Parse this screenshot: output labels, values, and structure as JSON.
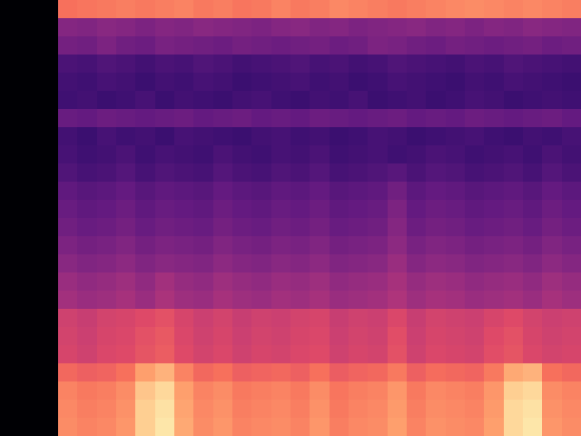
{
  "chart_data": {
    "type": "heatmap",
    "color": "magma",
    "tick_labels": false,
    "grid": false,
    "zlim": [
      0,
      100
    ],
    "z": [
      [
        0,
        0,
        0,
        70,
        71,
        72,
        73,
        72,
        73,
        74,
        72,
        73,
        71,
        72,
        74,
        72,
        73,
        75,
        74,
        73,
        72,
        73,
        74,
        75,
        76,
        75,
        74,
        75,
        74,
        73
      ],
      [
        0,
        0,
        0,
        38,
        37,
        39,
        38,
        36,
        38,
        37,
        39,
        38,
        37,
        36,
        38,
        39,
        37,
        38,
        36,
        37,
        38,
        39,
        37,
        38,
        36,
        38,
        37,
        39,
        38,
        37
      ],
      [
        0,
        0,
        0,
        34,
        33,
        36,
        33,
        32,
        35,
        34,
        33,
        32,
        34,
        33,
        32,
        33,
        34,
        32,
        33,
        36,
        35,
        33,
        32,
        34,
        33,
        32,
        33,
        34,
        32,
        33
      ],
      [
        0,
        0,
        0,
        24,
        23,
        25,
        24,
        22,
        24,
        23,
        25,
        24,
        22,
        23,
        24,
        25,
        23,
        24,
        22,
        23,
        25,
        24,
        23,
        22,
        24,
        23,
        25,
        24,
        23,
        22
      ],
      [
        0,
        0,
        0,
        22,
        21,
        23,
        22,
        20,
        22,
        21,
        23,
        22,
        20,
        21,
        22,
        23,
        21,
        22,
        20,
        21,
        23,
        22,
        21,
        20,
        22,
        21,
        23,
        22,
        21,
        20
      ],
      [
        0,
        0,
        0,
        21,
        22,
        20,
        21,
        23,
        20,
        22,
        21,
        20,
        22,
        23,
        21,
        20,
        22,
        21,
        23,
        20,
        21,
        22,
        20,
        21,
        23,
        22,
        20,
        21,
        22,
        21
      ],
      [
        0,
        0,
        0,
        31,
        30,
        32,
        31,
        30,
        31,
        32,
        30,
        31,
        32,
        30,
        31,
        30,
        32,
        31,
        30,
        31,
        32,
        30,
        31,
        30,
        32,
        31,
        30,
        31,
        32,
        30
      ],
      [
        0,
        0,
        0,
        22,
        20,
        23,
        21,
        22,
        20,
        23,
        22,
        21,
        20,
        22,
        23,
        21,
        22,
        20,
        21,
        23,
        22,
        20,
        21,
        22,
        23,
        21,
        20,
        22,
        21,
        23
      ],
      [
        0,
        0,
        0,
        23,
        21,
        22,
        24,
        21,
        23,
        22,
        21,
        24,
        22,
        21,
        23,
        22,
        24,
        21,
        22,
        23,
        21,
        22,
        24,
        23,
        21,
        22,
        23,
        21,
        24,
        22
      ],
      [
        0,
        0,
        0,
        25,
        23,
        24,
        26,
        23,
        25,
        24,
        23,
        26,
        24,
        23,
        25,
        24,
        26,
        23,
        24,
        25,
        27,
        24,
        26,
        25,
        23,
        24,
        25,
        23,
        26,
        24
      ],
      [
        0,
        0,
        0,
        29,
        27,
        28,
        30,
        27,
        29,
        28,
        27,
        30,
        28,
        27,
        29,
        28,
        30,
        27,
        28,
        29,
        33,
        28,
        30,
        29,
        27,
        28,
        29,
        27,
        30,
        28
      ],
      [
        0,
        0,
        0,
        31,
        29,
        30,
        32,
        29,
        31,
        30,
        29,
        32,
        30,
        29,
        31,
        30,
        32,
        29,
        30,
        31,
        36,
        30,
        32,
        31,
        29,
        30,
        31,
        29,
        32,
        30
      ],
      [
        0,
        0,
        0,
        33,
        31,
        32,
        34,
        31,
        33,
        32,
        31,
        34,
        32,
        31,
        33,
        32,
        34,
        31,
        32,
        33,
        38,
        32,
        34,
        33,
        31,
        32,
        33,
        31,
        34,
        32
      ],
      [
        0,
        0,
        0,
        36,
        34,
        35,
        37,
        34,
        36,
        35,
        34,
        37,
        35,
        34,
        36,
        35,
        37,
        34,
        35,
        36,
        40,
        35,
        37,
        36,
        34,
        35,
        36,
        34,
        37,
        35
      ],
      [
        0,
        0,
        0,
        39,
        37,
        38,
        40,
        37,
        39,
        38,
        37,
        40,
        38,
        37,
        39,
        38,
        40,
        37,
        38,
        39,
        43,
        38,
        40,
        39,
        37,
        38,
        39,
        37,
        40,
        38
      ],
      [
        0,
        0,
        0,
        43,
        41,
        42,
        44,
        41,
        45,
        42,
        41,
        44,
        42,
        41,
        43,
        42,
        44,
        41,
        42,
        43,
        46,
        42,
        44,
        43,
        41,
        42,
        43,
        41,
        44,
        42
      ],
      [
        0,
        0,
        0,
        45,
        43,
        44,
        46,
        43,
        47,
        44,
        43,
        46,
        44,
        43,
        45,
        44,
        46,
        43,
        44,
        45,
        48,
        44,
        46,
        45,
        43,
        44,
        45,
        43,
        46,
        44
      ],
      [
        0,
        0,
        0,
        56,
        54,
        57,
        58,
        60,
        62,
        58,
        55,
        57,
        54,
        56,
        55,
        57,
        58,
        54,
        56,
        55,
        59,
        54,
        57,
        56,
        55,
        58,
        60,
        57,
        55,
        56
      ],
      [
        0,
        0,
        0,
        57,
        55,
        58,
        59,
        62,
        64,
        59,
        56,
        58,
        55,
        57,
        56,
        58,
        59,
        55,
        57,
        56,
        61,
        55,
        58,
        57,
        56,
        60,
        62,
        58,
        56,
        57
      ],
      [
        0,
        0,
        0,
        58,
        56,
        59,
        60,
        63,
        65,
        60,
        57,
        59,
        56,
        58,
        57,
        59,
        60,
        56,
        58,
        57,
        62,
        56,
        59,
        58,
        57,
        61,
        63,
        59,
        57,
        58
      ],
      [
        0,
        0,
        0,
        68,
        66,
        67,
        70,
        80,
        84,
        74,
        68,
        70,
        66,
        67,
        68,
        66,
        70,
        65,
        67,
        68,
        72,
        66,
        69,
        68,
        67,
        72,
        82,
        84,
        70,
        68
      ],
      [
        0,
        0,
        0,
        74,
        72,
        73,
        76,
        88,
        92,
        80,
        74,
        76,
        72,
        73,
        74,
        72,
        76,
        71,
        73,
        74,
        78,
        72,
        75,
        74,
        73,
        78,
        90,
        92,
        76,
        74
      ],
      [
        0,
        0,
        0,
        75,
        73,
        74,
        77,
        90,
        94,
        81,
        75,
        77,
        73,
        74,
        75,
        73,
        77,
        72,
        74,
        75,
        79,
        73,
        76,
        75,
        74,
        79,
        92,
        94,
        77,
        75
      ],
      [
        0,
        0,
        0,
        76,
        74,
        75,
        78,
        90,
        95,
        82,
        76,
        78,
        74,
        75,
        76,
        74,
        78,
        73,
        75,
        76,
        80,
        74,
        77,
        76,
        75,
        80,
        92,
        95,
        78,
        76
      ]
    ]
  }
}
